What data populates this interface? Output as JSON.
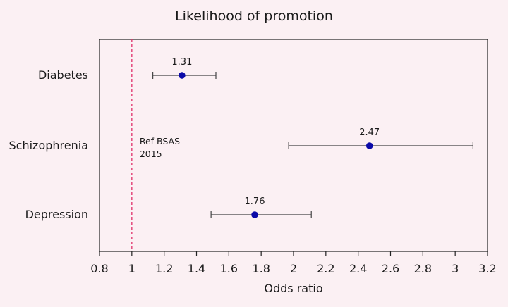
{
  "chart_data": {
    "type": "forest",
    "title": "Likelihood of promotion",
    "xlabel": "Odds ratio",
    "ylabel": "",
    "xlim": [
      0.8,
      3.2
    ],
    "xticks": [
      0.8,
      1,
      1.2,
      1.4,
      1.6,
      1.8,
      2,
      2.2,
      2.4,
      2.6,
      2.8,
      3,
      3.2
    ],
    "xtick_labels": [
      "0.8",
      "1",
      "1.2",
      "1.4",
      "1.6",
      "1.8",
      "2",
      "2.2",
      "2.4",
      "2.6",
      "2.8",
      "3",
      "3.2"
    ],
    "reference": {
      "value": 1,
      "label_lines": [
        "Ref BSAS",
        "2015"
      ]
    },
    "categories": [
      "Diabetes",
      "Schizophrenia",
      "Depression"
    ],
    "series": [
      {
        "name": "Odds ratio",
        "values": [
          1.31,
          2.47,
          1.76
        ],
        "value_labels": [
          "1.31",
          "2.47",
          "1.76"
        ],
        "ci_lower": [
          1.13,
          1.97,
          1.49
        ],
        "ci_upper": [
          1.52,
          3.11,
          2.11
        ]
      }
    ],
    "colors": {
      "point": "#0a0aa8",
      "reference": "#e0306a",
      "ci": "#444444"
    }
  }
}
